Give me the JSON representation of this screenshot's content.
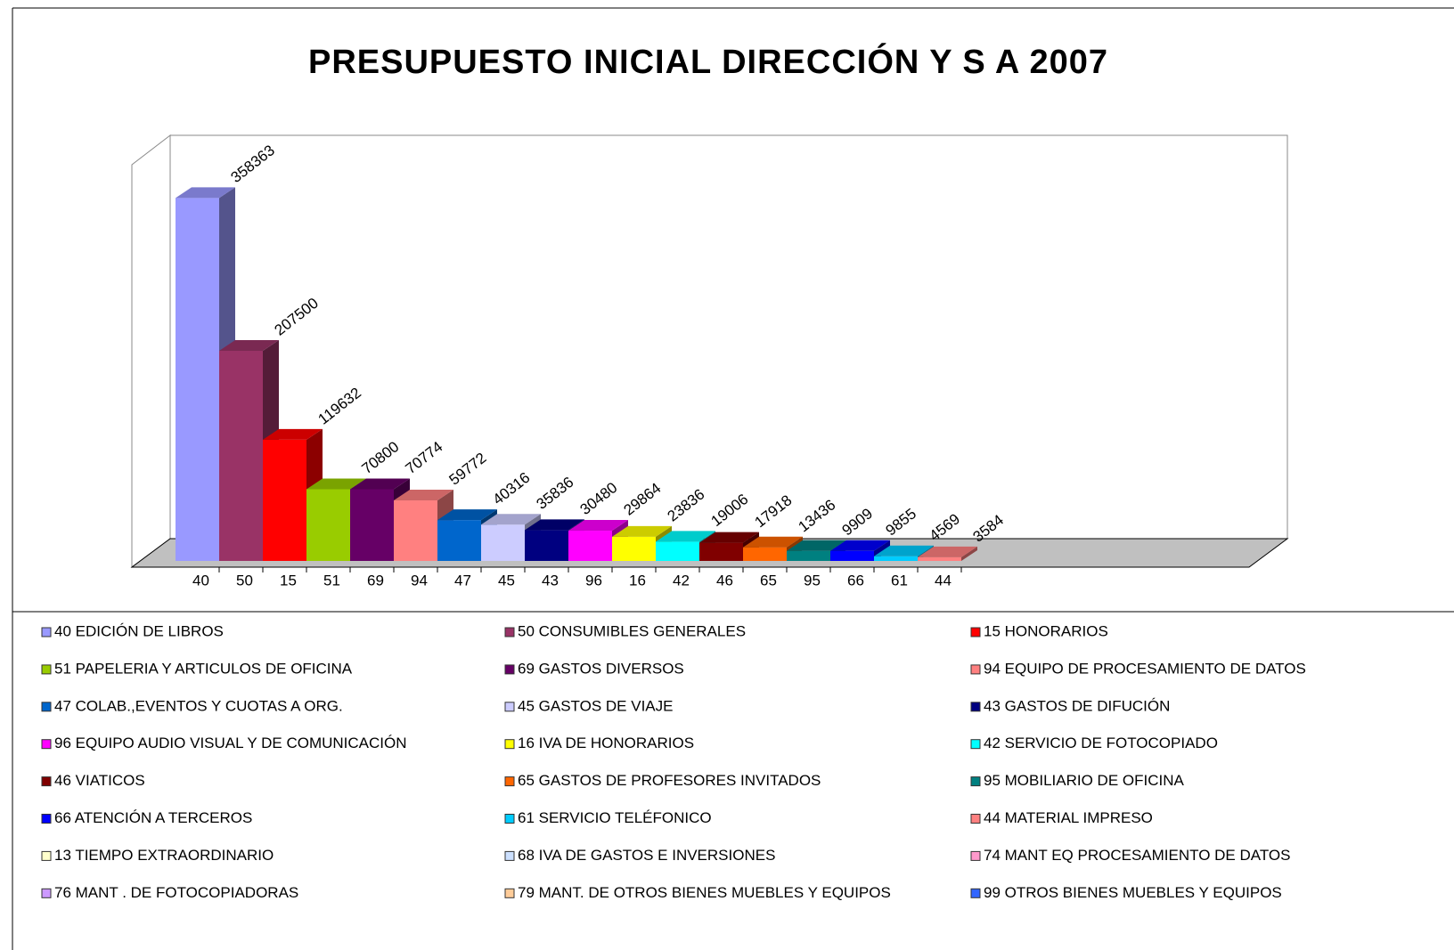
{
  "chart_data": {
    "type": "bar3d",
    "title": "PRESUPUESTO INICIAL DIRECCIÓN Y S A 2007",
    "categories": [
      "40",
      "50",
      "15",
      "51",
      "69",
      "94",
      "47",
      "45",
      "43",
      "96",
      "16",
      "42",
      "46",
      "65",
      "95",
      "66",
      "61",
      "44"
    ],
    "values": [
      358363,
      207500,
      119632,
      70800,
      70774,
      59772,
      40316,
      35836,
      30480,
      29864,
      23836,
      19006,
      17918,
      13436,
      9909,
      9855,
      4569,
      3584
    ],
    "ylim": [
      0,
      400000
    ],
    "legend": [
      {
        "label": "40 EDICIÓN DE LIBROS",
        "color": "#9999ff"
      },
      {
        "label": "50 CONSUMIBLES GENERALES",
        "color": "#993366"
      },
      {
        "label": "15 HONORARIOS",
        "color": "#ff0000"
      },
      {
        "label": "51 PAPELERIA Y ARTICULOS DE OFICINA",
        "color": "#99cc00"
      },
      {
        "label": "69 GASTOS DIVERSOS",
        "color": "#660066"
      },
      {
        "label": "94 EQUIPO DE PROCESAMIENTO DE DATOS",
        "color": "#ff8080"
      },
      {
        "label": "47 COLAB.,EVENTOS Y CUOTAS A ORG.",
        "color": "#0066cc"
      },
      {
        "label": "45 GASTOS DE VIAJE",
        "color": "#ccccff"
      },
      {
        "label": "43 GASTOS DE DIFUCIÓN",
        "color": "#000080"
      },
      {
        "label": "96 EQUIPO AUDIO VISUAL Y DE COMUNICACIÓN",
        "color": "#ff00ff"
      },
      {
        "label": "16 IVA DE HONORARIOS",
        "color": "#ffff00"
      },
      {
        "label": "42 SERVICIO DE FOTOCOPIADO",
        "color": "#00ffff"
      },
      {
        "label": "46 VIATICOS",
        "color": "#800000"
      },
      {
        "label": "65 GASTOS DE PROFESORES INVITADOS",
        "color": "#ff6600"
      },
      {
        "label": "95 MOBILIARIO DE OFICINA",
        "color": "#008080"
      },
      {
        "label": "66 ATENCIÓN A TERCEROS",
        "color": "#0000ff"
      },
      {
        "label": "61 SERVICIO TELÉFONICO",
        "color": "#00ccff"
      },
      {
        "label": "44 MATERIAL IMPRESO",
        "color": "#ff8080"
      },
      {
        "label": "13 TIEMPO EXTRAORDINARIO",
        "color": "#ffffcc"
      },
      {
        "label": "68 IVA DE GASTOS E INVERSIONES",
        "color": "#cce0ff"
      },
      {
        "label": "74 MANT EQ PROCESAMIENTO DE DATOS",
        "color": "#ff99cc"
      },
      {
        "label": "76 MANT . DE FOTOCOPIADORAS",
        "color": "#cc99ff"
      },
      {
        "label": "79 MANT. DE OTROS BIENES MUEBLES Y EQUIPOS",
        "color": "#ffcc99"
      },
      {
        "label": "99 OTROS BIENES MUEBLES Y EQUIPOS",
        "color": "#3366ff"
      }
    ]
  }
}
